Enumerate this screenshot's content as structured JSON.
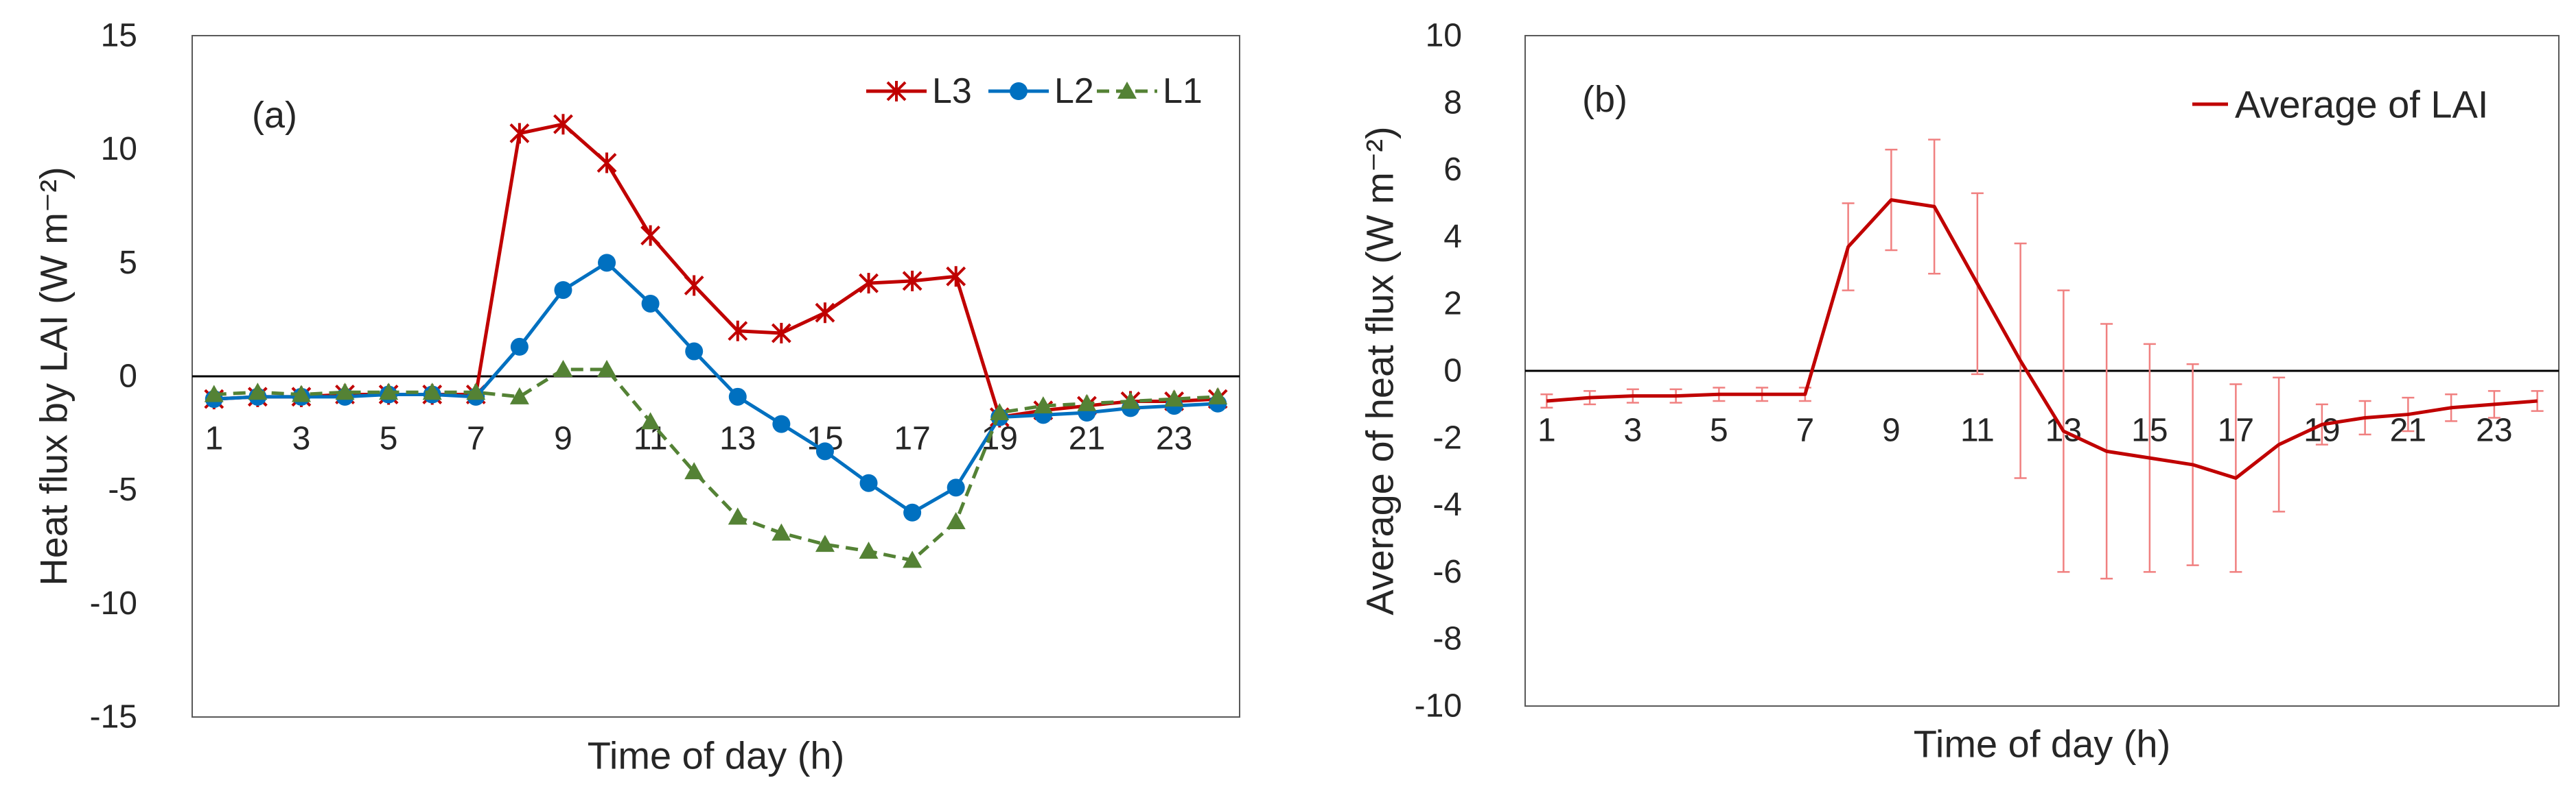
{
  "colors": {
    "l3": "#C00000",
    "l2": "#0070C0",
    "l1": "#548235",
    "axis": "#000000",
    "error": "#F08080",
    "text": "#262626"
  },
  "chart_data": [
    {
      "type": "line",
      "panel_label": "(a)",
      "xlabel": "Time of day (h)",
      "ylabel": "Heat flux by LAI  (W m⁻²)",
      "x": [
        1,
        2,
        3,
        4,
        5,
        6,
        7,
        8,
        9,
        10,
        11,
        12,
        13,
        14,
        15,
        16,
        17,
        18,
        19,
        20,
        21,
        22,
        23,
        24
      ],
      "xticks": [
        1,
        3,
        5,
        7,
        9,
        11,
        13,
        15,
        17,
        19,
        21,
        23
      ],
      "ylim": [
        -15,
        15
      ],
      "yticks": [
        -15,
        -10,
        -5,
        0,
        5,
        10,
        15
      ],
      "legend_position": "top-right",
      "series": [
        {
          "name": "L3",
          "marker": "asterisk",
          "color": "#C00000",
          "dash": "solid",
          "values": [
            -1.0,
            -0.9,
            -0.9,
            -0.8,
            -0.8,
            -0.8,
            -0.8,
            10.7,
            11.1,
            9.4,
            6.2,
            4.0,
            2.0,
            1.9,
            2.8,
            4.1,
            4.2,
            4.4,
            -1.8,
            -1.5,
            -1.3,
            -1.1,
            -1.1,
            -1.0
          ]
        },
        {
          "name": "L2",
          "marker": "circle",
          "color": "#0070C0",
          "dash": "solid",
          "values": [
            -1.0,
            -0.9,
            -0.9,
            -0.9,
            -0.8,
            -0.8,
            -0.9,
            1.3,
            3.8,
            5.0,
            3.2,
            1.1,
            -0.9,
            -2.1,
            -3.3,
            -4.7,
            -6.0,
            -4.9,
            -1.8,
            -1.7,
            -1.6,
            -1.4,
            -1.3,
            -1.2
          ]
        },
        {
          "name": "L1",
          "marker": "triangle",
          "color": "#548235",
          "dash": "dashed",
          "values": [
            -0.8,
            -0.7,
            -0.8,
            -0.7,
            -0.7,
            -0.7,
            -0.7,
            -0.9,
            0.3,
            0.3,
            -2.0,
            -4.2,
            -6.2,
            -6.9,
            -7.4,
            -7.7,
            -8.1,
            -6.4,
            -1.6,
            -1.3,
            -1.2,
            -1.1,
            -1.0,
            -0.9
          ]
        }
      ]
    },
    {
      "type": "line",
      "panel_label": "(b)",
      "xlabel": "Time of day (h)",
      "ylabel": "Average of heat flux (W m⁻²)",
      "x": [
        1,
        2,
        3,
        4,
        5,
        6,
        7,
        8,
        9,
        10,
        11,
        12,
        13,
        14,
        15,
        16,
        17,
        18,
        19,
        20,
        21,
        22,
        23,
        24
      ],
      "xticks": [
        1,
        3,
        5,
        7,
        9,
        11,
        13,
        15,
        17,
        19,
        21,
        23
      ],
      "ylim": [
        -10,
        10
      ],
      "yticks": [
        -10,
        -8,
        -6,
        -4,
        -2,
        0,
        2,
        4,
        6,
        8,
        10
      ],
      "legend_position": "top-right",
      "series": [
        {
          "name": "Average of LAI",
          "color": "#C00000",
          "dash": "solid",
          "values": [
            -0.9,
            -0.8,
            -0.75,
            -0.75,
            -0.7,
            -0.7,
            -0.7,
            3.7,
            5.1,
            4.9,
            2.6,
            0.3,
            -1.8,
            -2.4,
            -2.6,
            -2.8,
            -3.2,
            -2.2,
            -1.6,
            -1.4,
            -1.3,
            -1.1,
            -1.0,
            -0.9
          ],
          "error": [
            0.2,
            0.2,
            0.2,
            0.2,
            0.2,
            0.2,
            0.2,
            1.3,
            1.5,
            2.0,
            2.7,
            3.5,
            4.2,
            3.8,
            3.4,
            3.0,
            2.8,
            2.0,
            0.6,
            0.5,
            0.5,
            0.4,
            0.4,
            0.3
          ]
        }
      ]
    }
  ]
}
